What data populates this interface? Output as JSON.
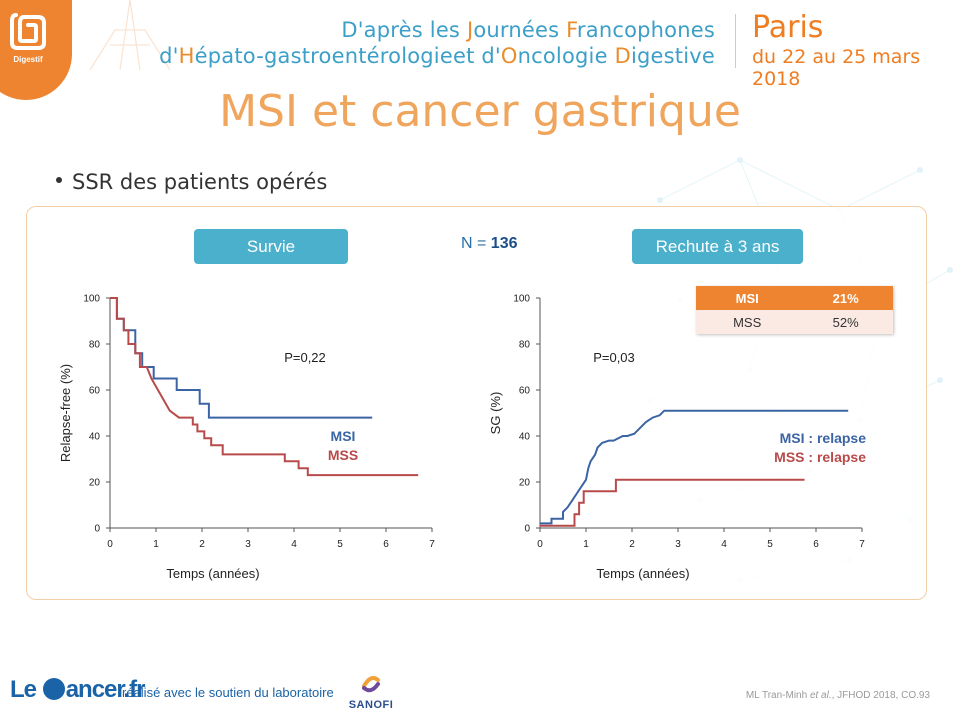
{
  "header": {
    "badge_label": "Digestif",
    "line1_parts": [
      "D'après les ",
      "J",
      "ournées ",
      "F",
      "rancophones"
    ],
    "line2_parts": [
      "d'",
      "H",
      "épato-gastroentérologieet d'",
      "O",
      "ncologie ",
      "D",
      "igestive"
    ],
    "city": "Paris",
    "dates": "du 22 au 25 mars 2018",
    "colors": {
      "blue": "#3b9fc8",
      "orange": "#e98d2c"
    }
  },
  "title": "MSI et cancer gastrique",
  "bullet": "SSR des patients opérés",
  "buttons": {
    "survie": "Survie",
    "rechute": "Rechute à 3 ans"
  },
  "n_label": {
    "prefix": "N = ",
    "value": "136"
  },
  "table": {
    "header": [
      "MSI",
      "21%"
    ],
    "row": [
      "MSS",
      "52%"
    ]
  },
  "chart_data": [
    {
      "type": "line",
      "ylabel": "Relapse-free (%)",
      "xlabel": "Temps (années)",
      "xlim": [
        0,
        7
      ],
      "ylim": [
        0,
        100
      ],
      "xticks": [
        0,
        1,
        2,
        3,
        4,
        5,
        6,
        7
      ],
      "yticks": [
        0,
        20,
        40,
        60,
        80,
        100
      ],
      "annotation": "P=0,22",
      "series": [
        {
          "name": "MSI",
          "color": "#3b64a4",
          "x": [
            0,
            0.15,
            0.15,
            0.3,
            0.3,
            0.55,
            0.55,
            0.7,
            0.7,
            0.95,
            0.95,
            1.45,
            1.45,
            1.95,
            1.95,
            2.15,
            2.15,
            5.7
          ],
          "y": [
            100,
            100,
            91,
            91,
            86,
            86,
            76,
            76,
            70,
            70,
            65,
            65,
            60,
            60,
            54,
            54,
            48,
            48
          ]
        },
        {
          "name": "MSS",
          "color": "#b84a4a",
          "x": [
            0,
            0.15,
            0.15,
            0.3,
            0.3,
            0.4,
            0.4,
            0.55,
            0.55,
            0.65,
            0.65,
            0.8,
            0.9,
            1.1,
            1.3,
            1.5,
            1.8,
            1.8,
            1.9,
            1.9,
            2.05,
            2.05,
            2.2,
            2.2,
            2.45,
            2.45,
            3.8,
            3.8,
            4.1,
            4.1,
            4.3,
            4.3,
            6.7
          ],
          "y": [
            100,
            100,
            91,
            91,
            86,
            86,
            80,
            80,
            76,
            76,
            70,
            70,
            65,
            58,
            51,
            48,
            48,
            45,
            45,
            42,
            42,
            39,
            39,
            36,
            36,
            32,
            32,
            29,
            29,
            26,
            26,
            23,
            23
          ]
        }
      ]
    },
    {
      "type": "line",
      "ylabel": "SG (%)",
      "xlabel": "Temps (années)",
      "xlim": [
        0,
        7
      ],
      "ylim": [
        0,
        100
      ],
      "xticks": [
        0,
        1,
        2,
        3,
        4,
        5,
        6,
        7
      ],
      "yticks": [
        0,
        20,
        40,
        60,
        80,
        100
      ],
      "annotation": "P=0,03",
      "series": [
        {
          "name": "MSI : relapse",
          "color": "#3b64a4",
          "x": [
            0,
            0.25,
            0.25,
            0.5,
            0.5,
            0.6,
            0.7,
            0.8,
            0.9,
            1.0,
            1.05,
            1.1,
            1.2,
            1.25,
            1.35,
            1.5,
            1.6,
            1.8,
            1.9,
            2.05,
            2.2,
            2.3,
            2.45,
            2.6,
            2.7,
            6.7
          ],
          "y": [
            2,
            2,
            4,
            4,
            7,
            9,
            12,
            15,
            18,
            21,
            26,
            29,
            32,
            35,
            37,
            38,
            38,
            40,
            40,
            41,
            44,
            46,
            48,
            49,
            51,
            51
          ]
        },
        {
          "name": "MSS : relapse",
          "color": "#b84a4a",
          "x": [
            0,
            0.75,
            0.75,
            0.85,
            0.85,
            0.95,
            0.95,
            1.65,
            1.65,
            5.75
          ],
          "y": [
            1,
            1,
            6,
            6,
            11,
            11,
            16,
            16,
            21,
            21
          ]
        }
      ]
    }
  ],
  "footer": {
    "logo_left": "Le ",
    "logo_right": "ancer.fr",
    "sponsor_text": "réalisé avec le soutien du laboratoire",
    "sanofi": "SANOFI",
    "citation_author": "ML Tran-Minh ",
    "citation_etal": "et al.",
    "citation_rest": ", JFHOD 2018, CO.93"
  }
}
